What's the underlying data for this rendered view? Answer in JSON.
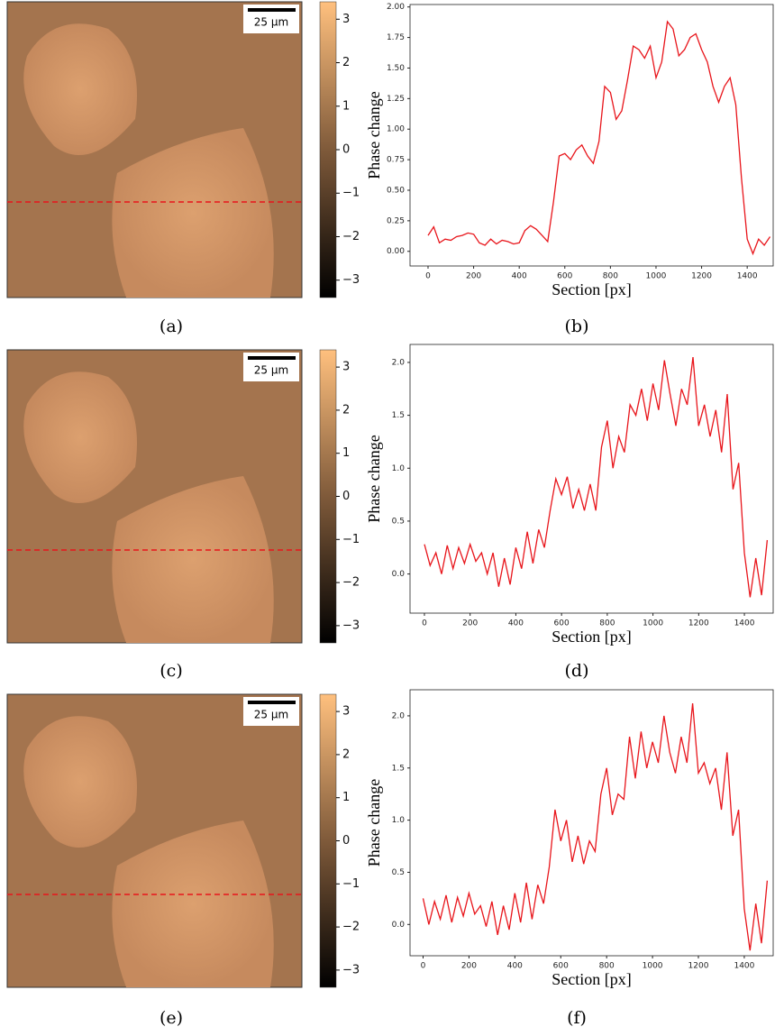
{
  "images": [
    {
      "caption": "(a)",
      "scale_bar_label": "25 µm",
      "colorbar": {
        "lim": [
          -3.4,
          3.4
        ],
        "ticks": [
          {
            "value": 3,
            "label": "3"
          },
          {
            "value": 2,
            "label": "2"
          },
          {
            "value": 1,
            "label": "1"
          },
          {
            "value": 0,
            "label": "0"
          },
          {
            "value": -1,
            "label": "−1"
          },
          {
            "value": -2,
            "label": "−2"
          },
          {
            "value": -3,
            "label": "−3"
          }
        ]
      }
    },
    {
      "caption": "(c)",
      "scale_bar_label": "25 µm",
      "colorbar": {
        "lim": [
          -3.4,
          3.4
        ],
        "ticks": [
          {
            "value": 3,
            "label": "3"
          },
          {
            "value": 2,
            "label": "2"
          },
          {
            "value": 1,
            "label": "1"
          },
          {
            "value": 0,
            "label": "0"
          },
          {
            "value": -1,
            "label": "−1"
          },
          {
            "value": -2,
            "label": "−2"
          },
          {
            "value": -3,
            "label": "−3"
          }
        ]
      }
    },
    {
      "caption": "(e)",
      "scale_bar_label": "25 µm",
      "colorbar": {
        "lim": [
          -3.4,
          3.4
        ],
        "ticks": [
          {
            "value": 3,
            "label": "3"
          },
          {
            "value": 2,
            "label": "2"
          },
          {
            "value": 1,
            "label": "1"
          },
          {
            "value": 0,
            "label": "0"
          },
          {
            "value": -1,
            "label": "−1"
          },
          {
            "value": -2,
            "label": "−2"
          },
          {
            "value": -3,
            "label": "−3"
          }
        ]
      }
    }
  ],
  "chart_data": [
    {
      "type": "line",
      "caption": "(b)",
      "x_label": "Section [px]",
      "y_label": "Phase change",
      "color": "#e8151b",
      "xlim": [
        -79,
        1514
      ],
      "xticks": [
        0,
        200,
        400,
        600,
        800,
        1000,
        1200,
        1400
      ],
      "ylim": [
        -0.12,
        2.02
      ],
      "yticks": [
        {
          "value": 0,
          "label": "0.00"
        },
        {
          "value": 0.25,
          "label": "0.25"
        },
        {
          "value": 0.5,
          "label": "0.50"
        },
        {
          "value": 0.75,
          "label": "0.75"
        },
        {
          "value": 1,
          "label": "1.00"
        },
        {
          "value": 1.25,
          "label": "1.25"
        },
        {
          "value": 1.5,
          "label": "1.50"
        },
        {
          "value": 1.75,
          "label": "1.75"
        },
        {
          "value": 2,
          "label": "2.00"
        }
      ],
      "x": [
        0,
        25,
        50,
        75,
        100,
        125,
        150,
        175,
        200,
        225,
        250,
        275,
        300,
        325,
        350,
        375,
        400,
        425,
        450,
        475,
        500,
        525,
        550,
        575,
        600,
        625,
        650,
        675,
        700,
        725,
        750,
        775,
        800,
        825,
        850,
        875,
        900,
        925,
        950,
        975,
        1000,
        1025,
        1050,
        1075,
        1100,
        1125,
        1150,
        1175,
        1200,
        1225,
        1250,
        1275,
        1300,
        1325,
        1350,
        1375,
        1400,
        1425,
        1450,
        1475,
        1500
      ],
      "values": [
        0.13,
        0.2,
        0.07,
        0.1,
        0.09,
        0.12,
        0.13,
        0.15,
        0.14,
        0.07,
        0.05,
        0.1,
        0.06,
        0.09,
        0.08,
        0.06,
        0.07,
        0.17,
        0.21,
        0.18,
        0.13,
        0.08,
        0.4,
        0.78,
        0.8,
        0.75,
        0.83,
        0.87,
        0.78,
        0.72,
        0.9,
        1.35,
        1.3,
        1.08,
        1.15,
        1.4,
        1.68,
        1.65,
        1.58,
        1.68,
        1.42,
        1.55,
        1.88,
        1.82,
        1.6,
        1.65,
        1.75,
        1.78,
        1.65,
        1.55,
        1.35,
        1.22,
        1.35,
        1.42,
        1.2,
        0.6,
        0.1,
        -0.02,
        0.1,
        0.05,
        0.12
      ]
    },
    {
      "type": "line",
      "caption": "(d)",
      "x_label": "Section [px]",
      "y_label": "Phase change",
      "color": "#e8151b",
      "xlim": [
        -63,
        1526
      ],
      "xticks": [
        0,
        200,
        400,
        600,
        800,
        1000,
        1200,
        1400
      ],
      "ylim": [
        -0.37,
        2.17
      ],
      "yticks": [
        {
          "value": 0,
          "label": "0.0"
        },
        {
          "value": 0.5,
          "label": "0.5"
        },
        {
          "value": 1,
          "label": "1.0"
        },
        {
          "value": 1.5,
          "label": "1.5"
        },
        {
          "value": 2,
          "label": "2.0"
        }
      ],
      "x": [
        0,
        25,
        50,
        75,
        100,
        125,
        150,
        175,
        200,
        225,
        250,
        275,
        300,
        325,
        350,
        375,
        400,
        425,
        450,
        475,
        500,
        525,
        550,
        575,
        600,
        625,
        650,
        675,
        700,
        725,
        750,
        775,
        800,
        825,
        850,
        875,
        900,
        925,
        950,
        975,
        1000,
        1025,
        1050,
        1075,
        1100,
        1125,
        1150,
        1175,
        1200,
        1225,
        1250,
        1275,
        1300,
        1325,
        1350,
        1375,
        1400,
        1425,
        1450,
        1475,
        1500
      ],
      "values": [
        0.28,
        0.08,
        0.2,
        0.0,
        0.27,
        0.05,
        0.25,
        0.1,
        0.28,
        0.12,
        0.2,
        0.0,
        0.2,
        -0.12,
        0.15,
        -0.1,
        0.25,
        0.05,
        0.4,
        0.1,
        0.42,
        0.25,
        0.6,
        0.9,
        0.75,
        0.92,
        0.62,
        0.8,
        0.6,
        0.85,
        0.6,
        1.2,
        1.45,
        1.0,
        1.3,
        1.15,
        1.6,
        1.5,
        1.75,
        1.45,
        1.8,
        1.55,
        2.02,
        1.7,
        1.4,
        1.75,
        1.6,
        2.05,
        1.4,
        1.6,
        1.3,
        1.55,
        1.15,
        1.7,
        0.8,
        1.05,
        0.2,
        -0.22,
        0.15,
        -0.2,
        0.32
      ]
    },
    {
      "type": "line",
      "caption": "(f)",
      "x_label": "Section [px]",
      "y_label": "Phase change",
      "color": "#e8151b",
      "xlim": [
        -57,
        1526
      ],
      "xticks": [
        0,
        200,
        400,
        600,
        800,
        1000,
        1200,
        1400
      ],
      "ylim": [
        -0.3,
        2.25
      ],
      "yticks": [
        {
          "value": 0,
          "label": "0.0"
        },
        {
          "value": 0.5,
          "label": "0.5"
        },
        {
          "value": 1,
          "label": "1.0"
        },
        {
          "value": 1.5,
          "label": "1.5"
        },
        {
          "value": 2,
          "label": "2.0"
        }
      ],
      "x": [
        0,
        25,
        50,
        75,
        100,
        125,
        150,
        175,
        200,
        225,
        250,
        275,
        300,
        325,
        350,
        375,
        400,
        425,
        450,
        475,
        500,
        525,
        550,
        575,
        600,
        625,
        650,
        675,
        700,
        725,
        750,
        775,
        800,
        825,
        850,
        875,
        900,
        925,
        950,
        975,
        1000,
        1025,
        1050,
        1075,
        1100,
        1125,
        1150,
        1175,
        1200,
        1225,
        1250,
        1275,
        1300,
        1325,
        1350,
        1375,
        1400,
        1425,
        1450,
        1475,
        1500
      ],
      "values": [
        0.25,
        0.0,
        0.22,
        0.05,
        0.28,
        0.02,
        0.26,
        0.08,
        0.3,
        0.1,
        0.18,
        -0.02,
        0.22,
        -0.1,
        0.18,
        -0.05,
        0.3,
        0.02,
        0.4,
        0.05,
        0.38,
        0.2,
        0.55,
        1.1,
        0.8,
        1.0,
        0.6,
        0.85,
        0.58,
        0.8,
        0.7,
        1.25,
        1.5,
        1.05,
        1.25,
        1.2,
        1.8,
        1.4,
        1.85,
        1.5,
        1.75,
        1.55,
        2.0,
        1.65,
        1.45,
        1.8,
        1.55,
        2.12,
        1.45,
        1.55,
        1.35,
        1.5,
        1.1,
        1.65,
        0.85,
        1.1,
        0.15,
        -0.25,
        0.2,
        -0.18,
        0.42
      ]
    }
  ]
}
